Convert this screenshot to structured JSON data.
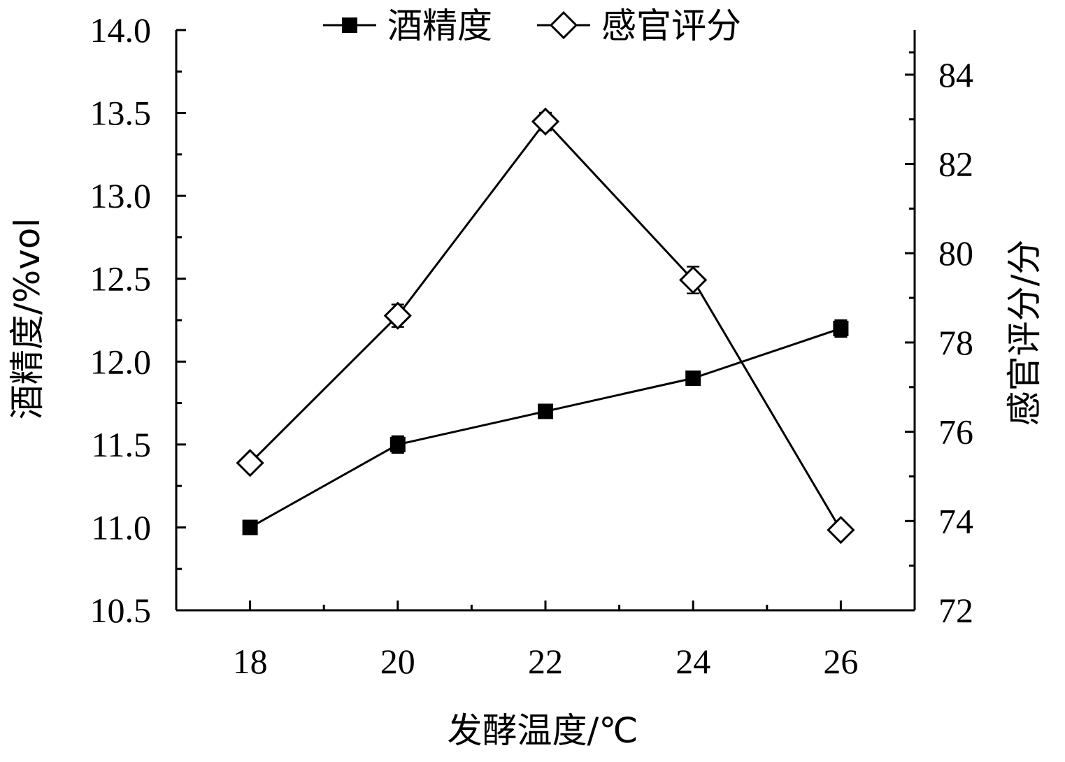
{
  "chart_data": {
    "type": "line",
    "x": [
      18,
      20,
      22,
      24,
      26
    ],
    "x_tick_labels": [
      "18",
      "20",
      "22",
      "24",
      "26"
    ],
    "xlabel": "发酵温度/℃",
    "xlim": [
      17,
      27
    ],
    "series": [
      {
        "name": "酒精度",
        "axis": "left",
        "marker": "filled-square",
        "values": [
          11.0,
          11.5,
          11.7,
          11.9,
          12.2
        ],
        "errors": [
          0.04,
          0.05,
          0.03,
          0.04,
          0.05
        ]
      },
      {
        "name": "感官评分",
        "axis": "right",
        "marker": "open-diamond",
        "values": [
          75.3,
          78.6,
          82.95,
          79.4,
          73.8
        ],
        "errors": [
          0.1,
          0.25,
          0.2,
          0.3,
          0.1
        ]
      }
    ],
    "y_left": {
      "label": "酒精度/%vol",
      "ylim": [
        10.5,
        14.0
      ],
      "ticks": [
        10.5,
        11.0,
        11.5,
        12.0,
        12.5,
        13.0,
        13.5,
        14.0
      ],
      "tick_labels": [
        "10.5",
        "11.0",
        "11.5",
        "12.0",
        "12.5",
        "13.0",
        "13.5",
        "14.0"
      ]
    },
    "y_right": {
      "label": "感官评分/分",
      "ylim": [
        72,
        85
      ],
      "ticks": [
        72,
        74,
        76,
        78,
        80,
        82,
        84
      ],
      "tick_labels": [
        "72",
        "74",
        "76",
        "78",
        "80",
        "82",
        "84"
      ]
    },
    "legend": {
      "position": "top-center"
    },
    "grid": false,
    "colors": {
      "line": "#000000",
      "background": "#ffffff"
    }
  }
}
